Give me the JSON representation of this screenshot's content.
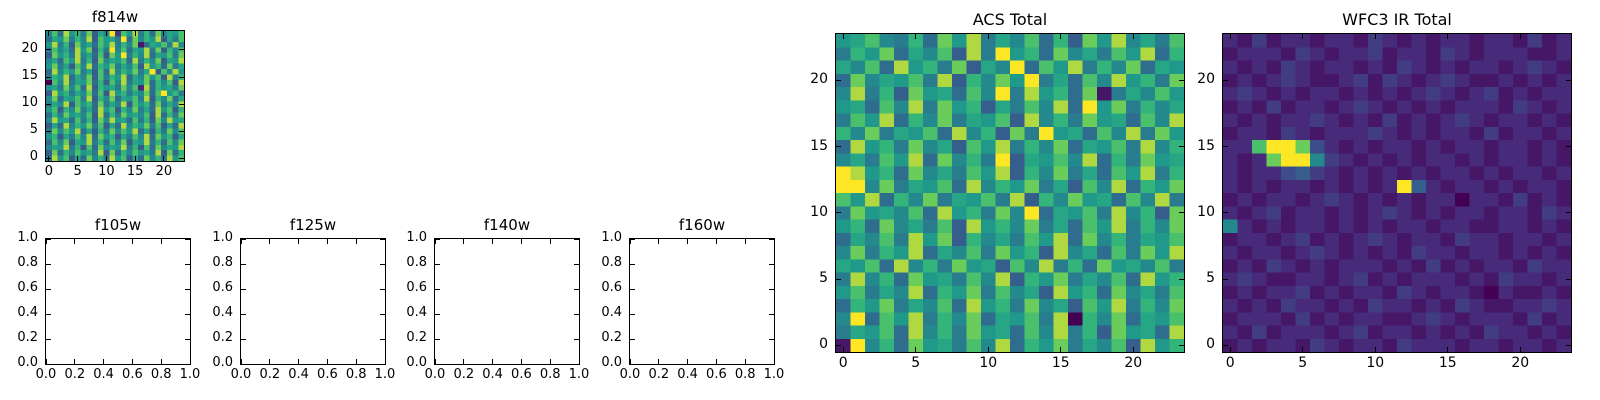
{
  "figure": {
    "background": "#ffffff",
    "colormap_name": "viridis",
    "colormap_stops": [
      "#440154",
      "#482878",
      "#3e4989",
      "#31688e",
      "#26828e",
      "#1f9e89",
      "#35b779",
      "#6dcd59",
      "#fde725"
    ]
  },
  "chart_data": [
    {
      "type": "heatmap",
      "title": "f814w",
      "colormap": "viridis",
      "grid": [
        24,
        24
      ],
      "x_range": [
        -0.5,
        23.5
      ],
      "y_range": [
        -0.5,
        23.5
      ],
      "x_ticks": {
        "values": [
          0,
          5,
          10,
          15,
          20
        ],
        "labels": [
          "0",
          "5",
          "10",
          "15",
          "20"
        ]
      },
      "y_ticks": {
        "values": [
          0,
          5,
          10,
          15,
          20
        ],
        "labels": [
          "0",
          "5",
          "10",
          "15",
          "20"
        ]
      },
      "value_encoding": "hex digit 0-f mapped to 0..1, rows listed top (y=23) to bottom (y=0), values estimated from pixels",
      "rows": [
        "8c6e9b7d5a8f3c9e7b6d8a9c",
        "6a9d7b8e5c9a7f6d8b9e5a7c",
        "9e7b5d8a6c9e7b8d16a9c7e8",
        "7c8a6e9d5b7f8c6a9e7d5b8c",
        "5d9b7e8a6c5d9f7b8e6a9c7d",
        "8a6c9e7b5d8a9c6e7b8d5a9e",
        "9d7a5c8e6b9d7a8c5e9b6d7a",
        "6e8b9d7a5c6e8b9d7af5c8e9",
        "7b9e6a8d5c7b9e6a8d9c5e7b",
        "0c8e7a9d6b5c8e7a9d6b8c5e",
        "9a7d8c6e5b9a7d8c2e6b9a7d",
        "5e9b7a8d6c5e9b7a8d6cf9b7",
        "8d6a9c7e5b8d6a9c7e5b8d6a",
        "7a8e5c9b6d7a8e5c9b6d7a8e",
        "9c5b8d7a6e9c5b8d7a6e9c5b",
        "6b7d9a8c5e6b7d9a8c5e6b7d",
        "8e9a6c7b5d8e9a6c7b5d8e9a",
        "5a6e8b9d7c5a6e8b9d7c5a6e",
        "7d8c9e6a5b7d8c9e6a5b7d8c",
        "9b5a7c8e6d9b5a7c8e6d9b5a",
        "6c8d5a9e7b6c8d5a9e7b6c8d",
        "8a9e7b5c6d8a9e7b5c6d8a9e",
        "5d6b8c9a7e5d6b8c9a7e5d6b",
        "7e9c5a6d8b7e9c5a6d8b7e9c"
      ]
    },
    {
      "type": "empty",
      "title": "f105w",
      "x_range": [
        0,
        1
      ],
      "y_range": [
        0,
        1
      ],
      "x_ticks": {
        "values": [
          0,
          0.2,
          0.4,
          0.6,
          0.8,
          1.0
        ],
        "labels": [
          "0.0",
          "0.2",
          "0.4",
          "0.6",
          "0.8",
          "1.0"
        ]
      },
      "y_ticks": {
        "values": [
          0,
          0.2,
          0.4,
          0.6,
          0.8,
          1.0
        ],
        "labels": [
          "0.0",
          "0.2",
          "0.4",
          "0.6",
          "0.8",
          "1.0"
        ]
      }
    },
    {
      "type": "empty",
      "title": "f125w",
      "x_range": [
        0,
        1
      ],
      "y_range": [
        0,
        1
      ],
      "x_ticks": {
        "values": [
          0,
          0.2,
          0.4,
          0.6,
          0.8,
          1.0
        ],
        "labels": [
          "0.0",
          "0.2",
          "0.4",
          "0.6",
          "0.8",
          "1.0"
        ]
      },
      "y_ticks": {
        "values": [
          0,
          0.2,
          0.4,
          0.6,
          0.8,
          1.0
        ],
        "labels": [
          "0.0",
          "0.2",
          "0.4",
          "0.6",
          "0.8",
          "1.0"
        ]
      }
    },
    {
      "type": "empty",
      "title": "f140w",
      "x_range": [
        0,
        1
      ],
      "y_range": [
        0,
        1
      ],
      "x_ticks": {
        "values": [
          0,
          0.2,
          0.4,
          0.6,
          0.8,
          1.0
        ],
        "labels": [
          "0.0",
          "0.2",
          "0.4",
          "0.6",
          "0.8",
          "1.0"
        ]
      },
      "y_ticks": {
        "values": [
          0,
          0.2,
          0.4,
          0.6,
          0.8,
          1.0
        ],
        "labels": [
          "0.0",
          "0.2",
          "0.4",
          "0.6",
          "0.8",
          "1.0"
        ]
      }
    },
    {
      "type": "empty",
      "title": "f160w",
      "x_range": [
        0,
        1
      ],
      "y_range": [
        0,
        1
      ],
      "x_ticks": {
        "values": [
          0,
          0.2,
          0.4,
          0.6,
          0.8,
          1.0
        ],
        "labels": [
          "0.0",
          "0.2",
          "0.4",
          "0.6",
          "0.8",
          "1.0"
        ]
      },
      "y_ticks": {
        "values": [
          0,
          0.2,
          0.4,
          0.6,
          0.8,
          1.0
        ],
        "labels": [
          "0.0",
          "0.2",
          "0.4",
          "0.6",
          "0.8",
          "1.0"
        ]
      }
    },
    {
      "type": "heatmap",
      "title": "ACS Total",
      "colormap": "viridis",
      "grid": [
        24,
        24
      ],
      "x_range": [
        -0.5,
        23.5
      ],
      "y_range": [
        -0.5,
        23.5
      ],
      "x_ticks": {
        "values": [
          0,
          5,
          10,
          15,
          20
        ],
        "labels": [
          "0",
          "5",
          "10",
          "15",
          "20"
        ]
      },
      "y_ticks": {
        "values": [
          0,
          5,
          10,
          15,
          20
        ],
        "labels": [
          "0",
          "5",
          "10",
          "15",
          "20"
        ]
      },
      "value_encoding": "hex digit 0-f mapped to 0..1, rows listed top (y=23) to bottom (y=0), values estimated from pixels",
      "rows": [
        "9ac87b6d9e7a8c6b5d9e8a7c",
        "7b9d6a8c5e7f9b6d8a7c9e6b",
        "a8c6e9b7d5a8f6c9e7b8d6a9",
        "6d8a9c7e5b8d9f7a6c8e9b7d",
        "8e7b5d9a6c8f7e9b6d17a8c9",
        "9a6c8e7d9b5a7c8e6f9d7b8a",
        "7c9e6b8d7a9c5e8b7d9a6c8e",
        "b8d7a9c6e8b5d7f9a6c8e7d9",
        "6e9b7d8a5c9e7b8d6a9c7e8b",
        "8a7c9e6d8b7f5a9c8e6b7d9a",
        "fe9b6d8a7c9e5b8d7a6c9e7b",
        "ff8d7a9c6e8b9d7a5c8e6b9d",
        "c9e6b8d7a9c7e5b8d9a6c8e7",
        "7d9a8c6e9b7d8f6a9c7e8b5d",
        "9b6d8a7c5e9b8d7a6c9e7b8d",
        "6a8c7e9d5b8a7c9e6d8b7a9c",
        "8d7b9e6a8c7d9b5e8a6c7d9e",
        "a9c6e8b7d9a5c8e7b6d9a8c7",
        "7e8b6d9a7c8e5b9d7a8c6e9b",
        "9c7a8e6b9d7c8a5e9b6d8a7c",
        "6b9d7a8c6e9b7d8a5c9e7b8d",
        "8f6c9e7b8d6a9c7e0b8d6a9c",
        "7a9c6e8b7d9a6c8e7b5d9a6e",
        "1f8b6d9a7c8e6b9d7a8c5e9b"
      ]
    },
    {
      "type": "heatmap",
      "title": "WFC3 IR Total",
      "colormap": "viridis",
      "grid": [
        24,
        24
      ],
      "x_range": [
        -0.5,
        23.5
      ],
      "y_range": [
        -0.5,
        23.5
      ],
      "x_ticks": {
        "values": [
          0,
          5,
          10,
          15,
          20
        ],
        "labels": [
          "0",
          "5",
          "10",
          "15",
          "20"
        ]
      },
      "y_ticks": {
        "values": [
          0,
          5,
          10,
          15,
          20
        ],
        "labels": [
          "0",
          "5",
          "10",
          "15",
          "20"
        ]
      },
      "value_encoding": "hex digit 0-f mapped to 0..1, rows listed top (y=23) to bottom (y=0), values estimated from pixels; bright source blob near x=2-6, y=14-15 and point source near x=12, y=12",
      "rows": [
        "213122122132121221221312",
        "122213212231221321222112",
        "212132122121321212212321",
        "121232112313212321121212",
        "232121221212123212312122",
        "121312212321212122213212",
        "212122321213121232122121",
        "122132122232121221312212",
        "22cffd421212212122122121",
        "212dff832121212212122121",
        "212245321212121221212212",
        "212122121212f52122121221",
        "121221232121212202213121",
        "212312212123212122122132",
        "821212212121221221122121",
        "122123121232122132212212",
        "212212321212132212212121",
        "121321212221213121221322",
        "232112212312122212132212",
        "121223121221321221021121",
        "212132212132212132112232",
        "122213121221123212221312",
        "213122212312212121322121",
        "121221321221322212212212"
      ]
    }
  ]
}
